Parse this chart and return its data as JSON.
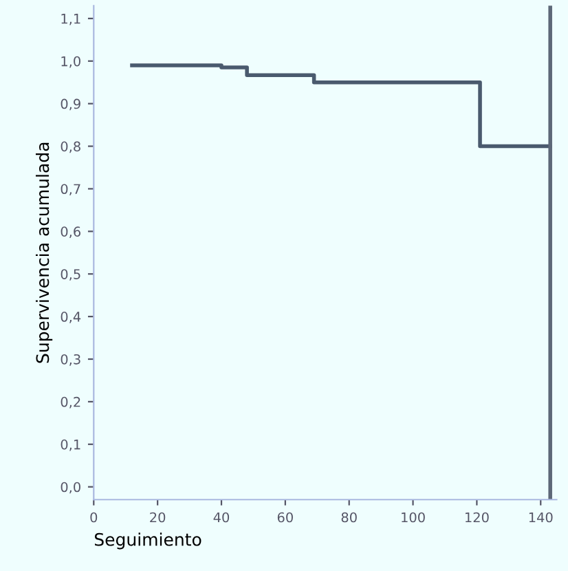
{
  "chart_data": {
    "type": "step",
    "xlabel": "Seguimiento",
    "ylabel": "Supervivencia acumulada",
    "x": [
      12,
      40,
      48,
      69,
      121,
      143
    ],
    "series": [
      {
        "color": "#4a5a6e",
        "values": [
          0.99,
          0.985,
          0.967,
          0.95,
          0.8,
          0.8
        ]
      }
    ],
    "xlim": [
      0,
      145
    ],
    "xticks": [
      0,
      20,
      40,
      60,
      80,
      100,
      120,
      140
    ],
    "ylim": [
      -0.03,
      1.13
    ],
    "yticks": [
      {
        "value": 0,
        "label": "0,0"
      },
      {
        "value": 0.1,
        "label": "0,1"
      },
      {
        "value": 0.2,
        "label": "0,2"
      },
      {
        "value": 0.3,
        "label": "0,3"
      },
      {
        "value": 0.4,
        "label": "0,4"
      },
      {
        "value": 0.5,
        "label": "0,5"
      },
      {
        "value": 0.6,
        "label": "0,6"
      },
      {
        "value": 0.7,
        "label": "0,7"
      },
      {
        "value": 0.8,
        "label": "0,8"
      },
      {
        "value": 0.9,
        "label": "0,9"
      },
      {
        "value": 1.0,
        "label": "1,0"
      },
      {
        "value": 1.1,
        "label": "1,1"
      }
    ],
    "ref_lines": [
      {
        "axis": "x",
        "value": 143,
        "color": "#5d6878"
      }
    ],
    "grid": false,
    "legend": false
  }
}
